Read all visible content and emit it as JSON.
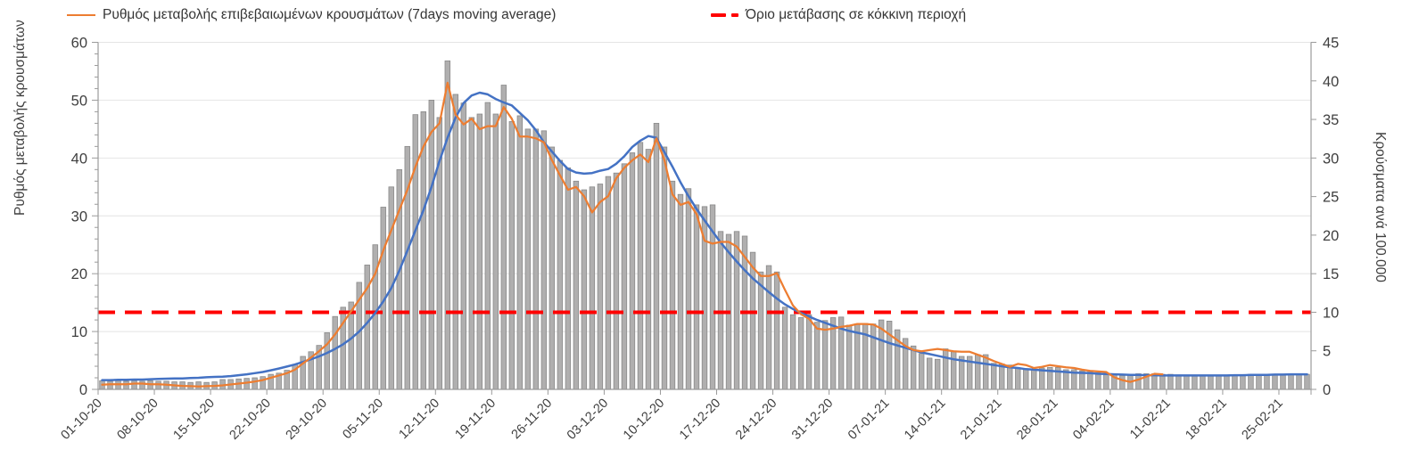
{
  "legend": [
    {
      "label": "Ρυθμός μεταβολής επιβεβαιωμένων κρουσμάτων (7days moving average)",
      "color": "#ED7D31",
      "style": "solid"
    },
    {
      "label": "Όριο μετάβασης σε κόκκινη περιοχή",
      "color": "#FF0000",
      "style": "dashed"
    }
  ],
  "left_axis": {
    "title": "Ρυθμός μεταβολής κρουσμάτων",
    "ticks": [
      0,
      10,
      20,
      30,
      40,
      50,
      60
    ],
    "min": 0,
    "max": 60
  },
  "right_axis": {
    "title": "Κρούσματα ανά 100.000",
    "ticks": [
      0,
      5,
      10,
      15,
      20,
      25,
      30,
      35,
      40,
      45
    ],
    "min": 0,
    "max": 45
  },
  "x_axis": {
    "tick_labels": [
      "01-10-20",
      "08-10-20",
      "15-10-20",
      "22-10-20",
      "29-10-20",
      "05-11-20",
      "12-11-20",
      "19-11-20",
      "26-11-20",
      "03-12-20",
      "10-12-20",
      "17-12-20",
      "24-12-20",
      "31-12-20",
      "07-01-21",
      "14-01-21",
      "21-01-21",
      "28-01-21",
      "04-02-21",
      "11-02-21",
      "18-02-21",
      "25-02-21"
    ],
    "tick_interval_days": 7
  },
  "colors": {
    "bars": "#B0AFAF",
    "bar_border": "#898989",
    "moving_average": "#ED7D31",
    "trend": "#4472C4",
    "threshold": "#FF0000",
    "gridline": "#E4E4E4",
    "axis_line": "#9B9B9B",
    "tick_text": "#3F3F3F"
  },
  "chart_data": {
    "type": "bar",
    "title": "",
    "xlabel": "",
    "ylabel_left": "Ρυθμός μεταβολής κρουσμάτων",
    "ylabel_right": "Κρούσματα ανά 100.000",
    "ylim_left": [
      0,
      60
    ],
    "ylim_right": [
      0,
      45
    ],
    "grid": true,
    "legend_position": "top",
    "x_start": "01-10-20",
    "x_end": "28-02-21",
    "x_tick_labels": [
      "01-10-20",
      "08-10-20",
      "15-10-20",
      "22-10-20",
      "29-10-20",
      "05-11-20",
      "12-11-20",
      "19-11-20",
      "26-11-20",
      "03-12-20",
      "10-12-20",
      "17-12-20",
      "24-12-20",
      "31-12-20",
      "07-01-21",
      "14-01-21",
      "21-01-21",
      "28-01-21",
      "04-02-21",
      "11-02-21",
      "18-02-21",
      "25-02-21"
    ],
    "series": [
      {
        "name": "daily-rate-bars",
        "type": "bar",
        "axis": "left",
        "values": [
          1.5,
          1.4,
          1.5,
          1.4,
          1.5,
          1.4,
          1.5,
          1.4,
          1.4,
          1.3,
          1.3,
          1.2,
          1.3,
          1.2,
          1.3,
          1.7,
          1.7,
          1.8,
          1.9,
          2.0,
          2.2,
          2.6,
          2.8,
          3.3,
          4.3,
          5.7,
          6.5,
          7.6,
          9.8,
          12.6,
          14.2,
          15.1,
          18.5,
          21.5,
          25.0,
          31.5,
          35.0,
          38.0,
          42.0,
          47.5,
          48.0,
          50.0,
          47.0,
          56.8,
          51.0,
          49.5,
          47.0,
          47.6,
          49.6,
          47.6,
          52.6,
          46.3,
          47.3,
          45.0,
          45.0,
          44.7,
          41.9,
          39.6,
          38.3,
          36.0,
          34.5,
          35.0,
          35.5,
          36.8,
          37.4,
          39.0,
          40.9,
          42.7,
          41.5,
          46.0,
          41.9,
          36.0,
          33.7,
          34.7,
          31.9,
          31.6,
          31.9,
          27.3,
          26.8,
          27.3,
          26.5,
          23.7,
          20.3,
          21.4,
          20.3,
          14.2,
          12.9,
          12.4,
          12.9,
          11.6,
          11.9,
          12.4,
          12.5,
          11.1,
          11.3,
          11.4,
          11.3,
          12.0,
          11.8,
          10.3,
          8.8,
          7.5,
          6.2,
          5.4,
          5.2,
          7.0,
          6.5,
          5.7,
          5.7,
          6.0,
          6.0,
          4.5,
          4.4,
          4.2,
          3.7,
          3.4,
          3.4,
          3.7,
          3.8,
          3.8,
          3.4,
          3.4,
          3.2,
          3.0,
          2.9,
          2.8,
          2.6,
          2.4,
          2.6,
          2.7,
          2.7,
          2.7,
          2.6,
          2.6,
          2.5,
          2.4,
          2.4,
          2.4,
          2.4,
          2.4,
          2.4,
          2.4,
          2.5,
          2.6,
          2.6,
          2.6,
          2.6,
          2.6,
          2.6,
          2.6,
          2.6
        ]
      },
      {
        "name": "7day-moving-average",
        "type": "line",
        "axis": "left",
        "color": "#ED7D31",
        "values": [
          0.8,
          0.9,
          0.9,
          0.9,
          1.0,
          1.0,
          0.9,
          0.9,
          0.8,
          0.7,
          0.6,
          0.55,
          0.5,
          0.55,
          0.6,
          0.7,
          0.85,
          1.0,
          1.15,
          1.35,
          1.6,
          2.0,
          2.4,
          2.8,
          3.4,
          4.5,
          5.5,
          6.6,
          7.8,
          9.5,
          11.5,
          13.5,
          15.5,
          17.5,
          20.0,
          24.0,
          27.5,
          31.0,
          34.5,
          38.5,
          42.0,
          44.5,
          46.0,
          53.0,
          47.5,
          45.8,
          46.8,
          45.0,
          45.5,
          45.5,
          48.8,
          46.8,
          43.7,
          43.7,
          43.4,
          42.7,
          39.6,
          37.0,
          34.5,
          35.0,
          33.4,
          30.6,
          32.4,
          33.4,
          36.5,
          38.3,
          39.6,
          40.6,
          39.3,
          43.4,
          39.6,
          33.7,
          31.9,
          32.4,
          30.3,
          25.7,
          25.2,
          25.5,
          25.5,
          24.7,
          22.9,
          21.1,
          19.6,
          19.6,
          20.1,
          17.2,
          14.5,
          13.0,
          12.2,
          10.5,
          10.3,
          10.5,
          10.8,
          11.0,
          11.3,
          11.3,
          11.2,
          10.5,
          9.5,
          8.5,
          7.5,
          6.8,
          6.6,
          6.8,
          7.0,
          6.8,
          6.6,
          6.5,
          6.5,
          6.0,
          5.5,
          4.9,
          4.4,
          3.9,
          4.4,
          4.2,
          3.7,
          3.9,
          4.2,
          4.0,
          3.8,
          3.7,
          3.4,
          3.2,
          3.1,
          3.0,
          2.1,
          1.6,
          1.3,
          1.7,
          2.2,
          2.7,
          2.6
        ]
      },
      {
        "name": "smoothed-trend",
        "type": "line",
        "axis": "left",
        "color": "#4472C4",
        "values": [
          1.6,
          1.6,
          1.65,
          1.65,
          1.7,
          1.7,
          1.75,
          1.8,
          1.85,
          1.9,
          1.9,
          1.95,
          2.0,
          2.1,
          2.15,
          2.2,
          2.3,
          2.45,
          2.6,
          2.8,
          3.0,
          3.3,
          3.6,
          3.95,
          4.3,
          4.75,
          5.2,
          5.7,
          6.3,
          7.0,
          7.8,
          8.8,
          10.0,
          11.5,
          13.2,
          15.2,
          17.5,
          20.5,
          24.0,
          27.5,
          31.0,
          35.0,
          39.5,
          43.5,
          47.0,
          49.5,
          50.8,
          51.3,
          51.0,
          50.2,
          49.6,
          49.1,
          47.8,
          46.5,
          44.8,
          42.7,
          41.1,
          39.5,
          38.1,
          37.5,
          37.3,
          37.4,
          37.8,
          38.1,
          39.0,
          40.3,
          41.9,
          43.0,
          43.8,
          43.5,
          41.0,
          38.5,
          35.8,
          33.4,
          31.2,
          29.2,
          27.3,
          25.4,
          23.7,
          22.1,
          20.6,
          19.2,
          18.0,
          16.8,
          15.7,
          14.7,
          13.9,
          13.2,
          12.6,
          12.0,
          11.5,
          11.0,
          10.5,
          10.1,
          9.8,
          9.5,
          9.0,
          8.5,
          8.0,
          7.6,
          7.2,
          6.8,
          6.4,
          6.1,
          5.8,
          5.5,
          5.2,
          5.0,
          4.8,
          4.6,
          4.4,
          4.2,
          4.0,
          3.8,
          3.7,
          3.5,
          3.4,
          3.3,
          3.2,
          3.1,
          3.0,
          2.9,
          2.85,
          2.8,
          2.7,
          2.65,
          2.6,
          2.55,
          2.5,
          2.5,
          2.45,
          2.45,
          2.4,
          2.4,
          2.4,
          2.4,
          2.4,
          2.4,
          2.4,
          2.4,
          2.4,
          2.45,
          2.45,
          2.5,
          2.5,
          2.5,
          2.55,
          2.55,
          2.6,
          2.6,
          2.6
        ]
      },
      {
        "name": "red-zone-threshold",
        "type": "hline",
        "axis": "right",
        "color": "#FF0000",
        "value_right_axis": 10,
        "value_left_axis": 13.33
      }
    ]
  }
}
